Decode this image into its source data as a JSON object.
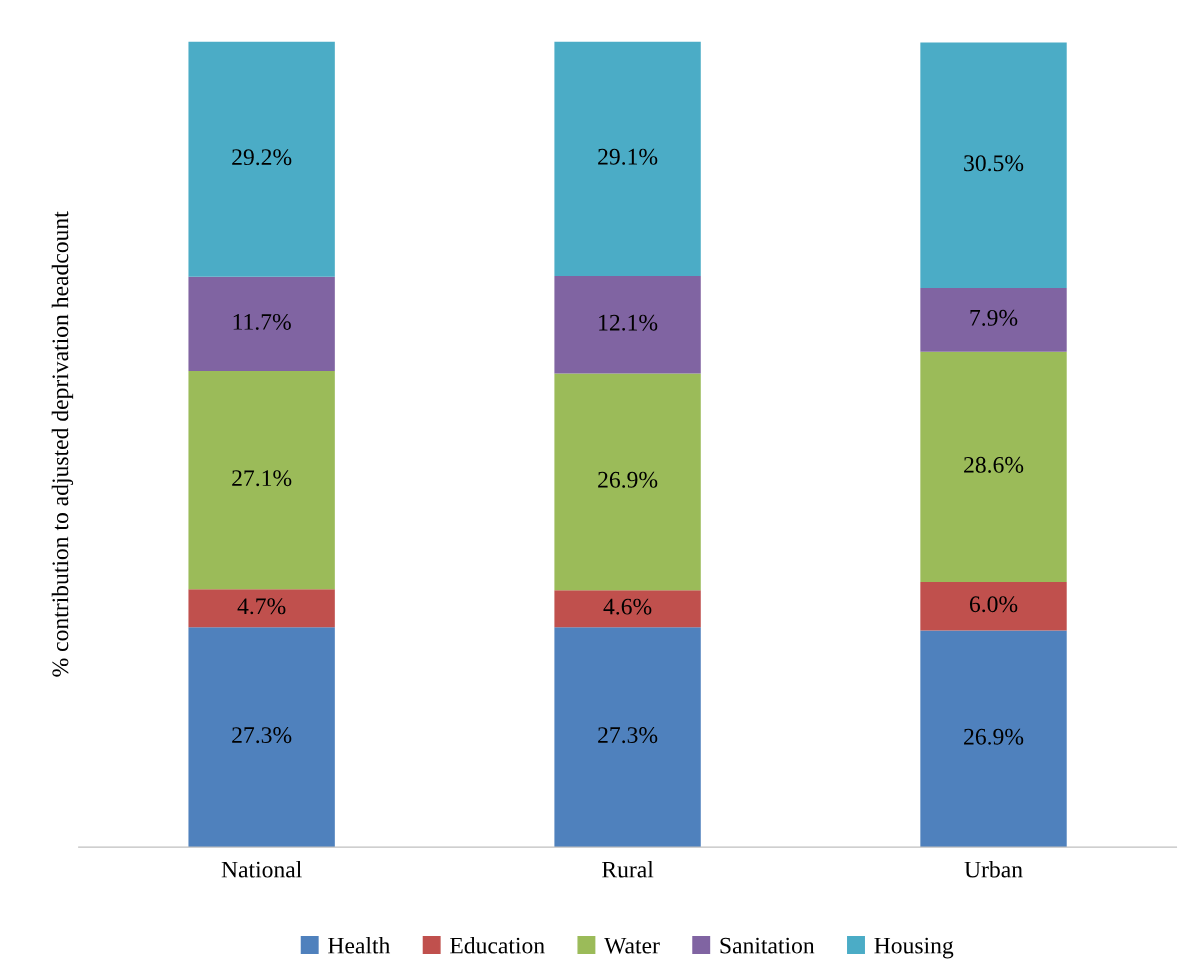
{
  "chart_data": {
    "type": "bar",
    "stacked": true,
    "ylabel": "% contribution to adjusted deprivation headcount",
    "categories": [
      "National",
      "Rural",
      "Urban"
    ],
    "series": [
      {
        "name": "Health",
        "color": "#4f81bd",
        "values": [
          27.3,
          27.3,
          26.9
        ],
        "value_labels": [
          "27.3%",
          "27.3%",
          "26.9%"
        ]
      },
      {
        "name": "Education",
        "color": "#c0504d",
        "values": [
          4.7,
          4.6,
          6.0
        ],
        "value_labels": [
          "4.7%",
          "4.6%",
          "6.0%"
        ]
      },
      {
        "name": "Water",
        "color": "#9bbb59",
        "values": [
          27.1,
          26.9,
          28.6
        ],
        "value_labels": [
          "27.1%",
          "26.9%",
          "28.6%"
        ]
      },
      {
        "name": "Sanitation",
        "color": "#8064a2",
        "values": [
          11.7,
          12.1,
          7.9
        ],
        "value_labels": [
          "11.7%",
          "12.1%",
          "7.9%"
        ]
      },
      {
        "name": "Housing",
        "color": "#4bacc6",
        "values": [
          29.2,
          29.1,
          30.5
        ],
        "value_labels": [
          "29.2%",
          "29.1%",
          "30.5%"
        ]
      }
    ],
    "ylim": [
      0,
      100
    ],
    "tick_labels": "x",
    "grid": false,
    "legend": "bottom"
  }
}
